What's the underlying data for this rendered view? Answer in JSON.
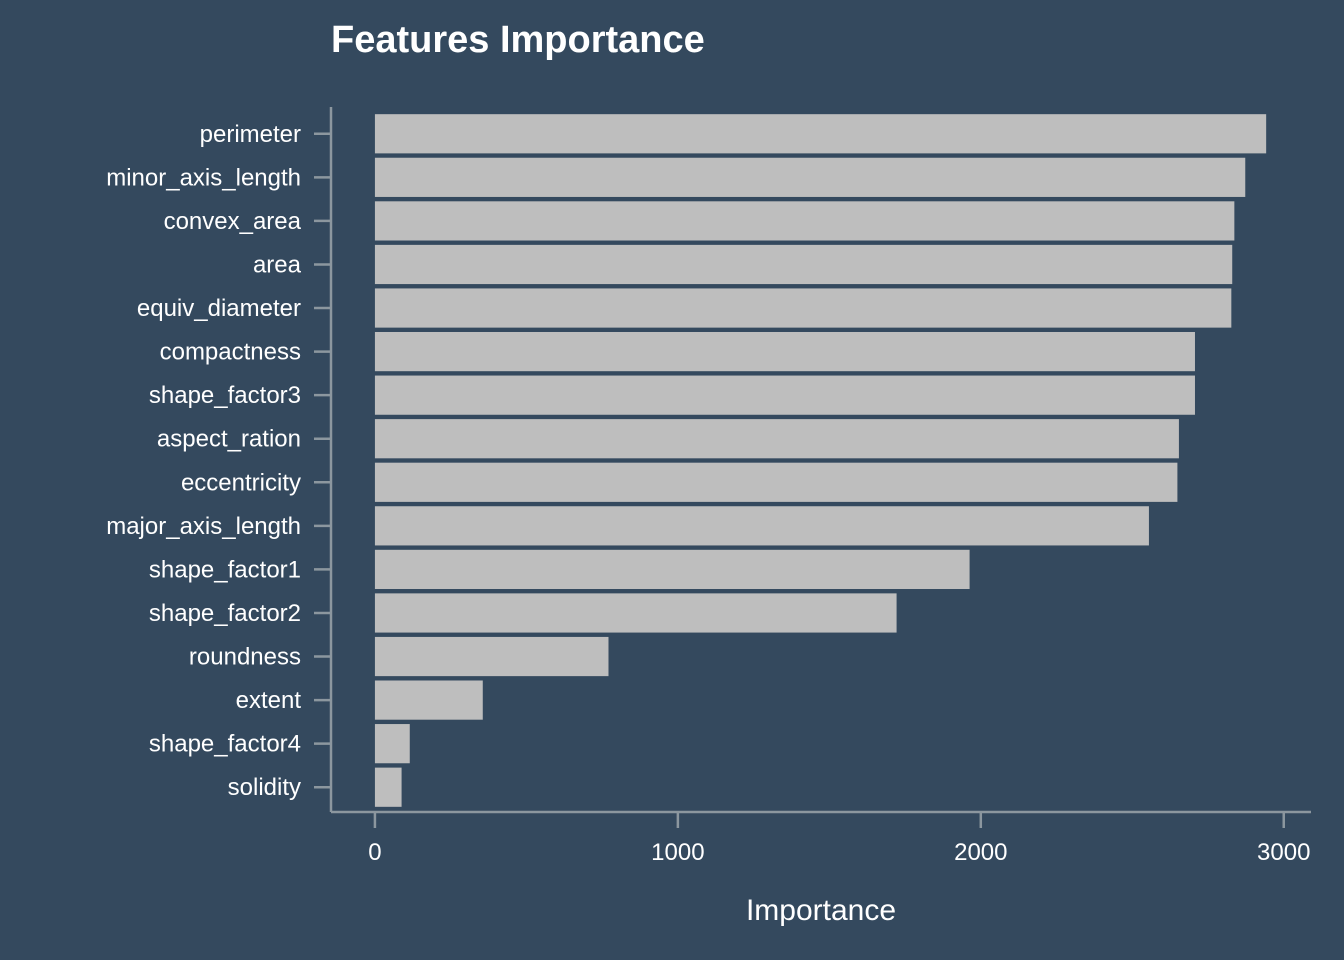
{
  "chart_data": {
    "type": "bar",
    "orientation": "horizontal",
    "title": "Features Importance",
    "xlabel": "Importance",
    "ylabel": "",
    "xlim": [
      -145,
      3090
    ],
    "xticks": [
      0,
      1000,
      2000,
      3000
    ],
    "xtick_labels": [
      "0",
      "1000",
      "2000",
      "3000"
    ],
    "categories": [
      "perimeter",
      "minor_axis_length",
      "convex_area",
      "area",
      "equiv_diameter",
      "compactness",
      "shape_factor3",
      "aspect_ration",
      "eccentricity",
      "major_axis_length",
      "shape_factor1",
      "shape_factor2",
      "roundness",
      "extent",
      "shape_factor4",
      "solidity"
    ],
    "values": [
      2942,
      2873,
      2837,
      2830,
      2827,
      2707,
      2707,
      2654,
      2649,
      2555,
      1963,
      1722,
      771,
      356,
      115,
      88
    ],
    "grid": false,
    "legend": "none"
  },
  "colors": {
    "background": "#34495e",
    "bar": "#bebebe",
    "axis": "#8c979f",
    "text": "#ffffff"
  }
}
